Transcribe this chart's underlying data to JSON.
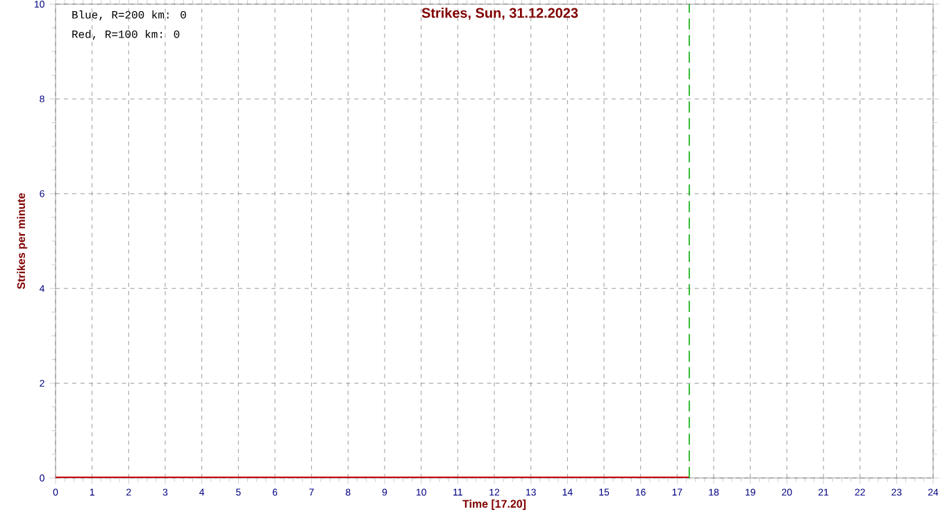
{
  "chart_data": {
    "type": "line",
    "title": "Strikes, Sun, 31.12.2023",
    "xlabel": "Time  [17.20]",
    "ylabel": "Strikes per minute",
    "x": [
      0,
      17.33
    ],
    "series": [
      {
        "color": "#cc0000",
        "values": [
          0,
          0
        ]
      }
    ],
    "xlim": [
      0,
      24
    ],
    "ylim": [
      0,
      10
    ],
    "xticks": [
      0,
      1,
      2,
      3,
      4,
      5,
      6,
      7,
      8,
      9,
      10,
      11,
      12,
      13,
      14,
      15,
      16,
      17,
      18,
      19,
      20,
      21,
      22,
      23,
      24
    ],
    "yticks": [
      0,
      2,
      4,
      6,
      8,
      10
    ],
    "grid": true,
    "marker": "none",
    "line_style": "solid",
    "ref_lines": [
      {
        "axis": "x",
        "value": 17.33,
        "color": "#00aa00",
        "line_style": "dashed"
      }
    ],
    "annotations": [
      "Blue, R=200 km: 0",
      "Red,  R=100 km: 0"
    ]
  }
}
